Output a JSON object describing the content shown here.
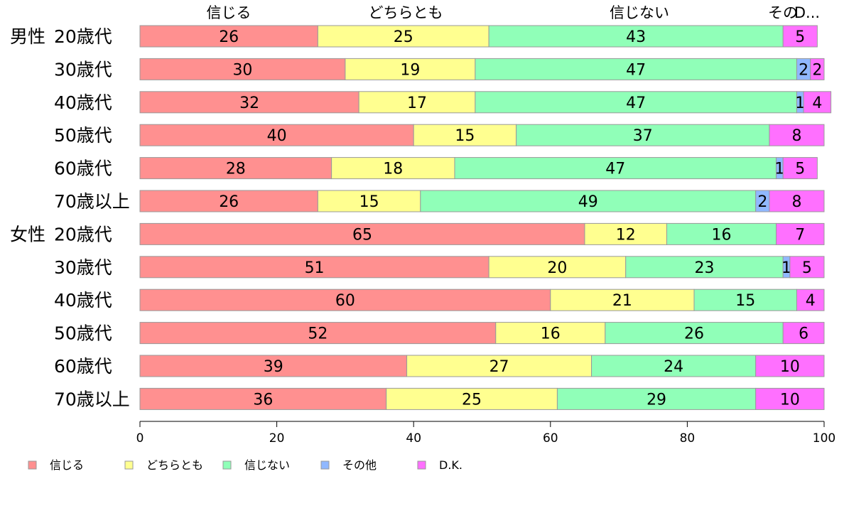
{
  "colors": {
    "信じる": "#ff9090",
    "どちらとも": "#ffff90",
    "信じない": "#90ffb8",
    "その他": "#90b8ff",
    "D.K.": "#ff70ff"
  },
  "chart_data": {
    "type": "bar",
    "orientation": "horizontal",
    "stacked": true,
    "top_labels": [
      "信じる",
      "どちらとも",
      "信じない",
      "その他",
      "D.K."
    ],
    "top_labels_display": [
      "信じる",
      "どちらとも",
      "信じない",
      "その",
      "D..."
    ],
    "groups": [
      {
        "label": "男性",
        "first_row": 0
      },
      {
        "label": "女性",
        "first_row": 6
      }
    ],
    "categories": [
      "20歳代",
      "30歳代",
      "40歳代",
      "50歳代",
      "60歳代",
      "70歳以上",
      "20歳代",
      "30歳代",
      "40歳代",
      "50歳代",
      "60歳代",
      "70歳以上"
    ],
    "series": [
      {
        "name": "信じる",
        "values": [
          26,
          30,
          32,
          40,
          28,
          26,
          65,
          51,
          60,
          52,
          39,
          36
        ]
      },
      {
        "name": "どちらとも",
        "values": [
          25,
          19,
          17,
          15,
          18,
          15,
          12,
          20,
          21,
          16,
          27,
          25
        ]
      },
      {
        "name": "信じない",
        "values": [
          43,
          47,
          47,
          37,
          47,
          49,
          16,
          23,
          15,
          26,
          24,
          29
        ]
      },
      {
        "name": "その他",
        "values": [
          0,
          2,
          1,
          0,
          1,
          2,
          0,
          1,
          0,
          0,
          0,
          0
        ]
      },
      {
        "name": "D.K.",
        "values": [
          5,
          2,
          4,
          8,
          5,
          8,
          7,
          5,
          4,
          6,
          10,
          10
        ]
      }
    ],
    "xlim": [
      0,
      100
    ],
    "xticks": [
      0,
      20,
      40,
      60,
      80,
      100
    ],
    "legend": {
      "placement": "bottom-left",
      "entries": [
        "信じる",
        "どちらとも",
        "信じない",
        "その他",
        "D.K."
      ]
    },
    "grid": false
  }
}
